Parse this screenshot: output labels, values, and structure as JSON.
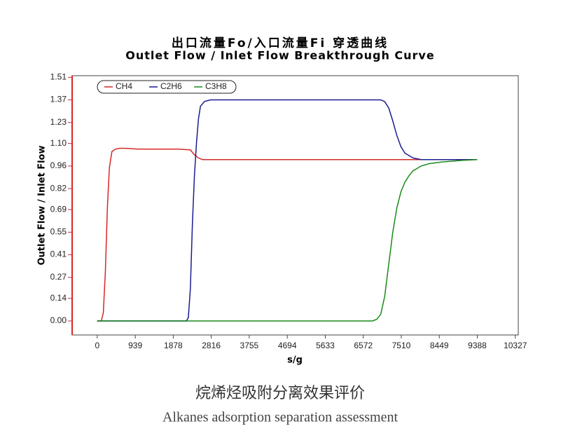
{
  "chart_data": {
    "type": "line",
    "title": "出口流量Fo/入口流量Fi 穿透曲线",
    "subtitle": "Outlet Flow / Inlet Flow Breakthrough Curve",
    "x_label": "s/g",
    "y_label": "Outlet Flow / Inlet Flow",
    "caption": "烷烯烃吸附分离效果评价",
    "caption_translation": "Alkanes adsorption separation assessment",
    "xlim": [
      -620,
      10400
    ],
    "xticks": [
      0,
      939,
      1878,
      2816,
      3755,
      4694,
      5633,
      6572,
      7510,
      8449,
      9388,
      10327
    ],
    "ylim": [
      -0.087,
      1.52
    ],
    "yticks": [
      {
        "value": 0,
        "label": "0.00"
      },
      0.14,
      0.27,
      0.41,
      0.55,
      0.69,
      0.82,
      0.96,
      {
        "value": 1.1,
        "label": "1.10"
      },
      1.23,
      1.37,
      1.51
    ],
    "legend": "top-left",
    "series": [
      {
        "name": "CH4",
        "color": "#d62828",
        "x": [
          0,
          100,
          150,
          200,
          250,
          300,
          363,
          450,
          550,
          700,
          1000,
          1500,
          2000,
          2300,
          2400,
          2500,
          2600,
          3000,
          4000,
          5000,
          6000,
          7000,
          8000,
          9000,
          9388
        ],
        "values": [
          0,
          0,
          0.05,
          0.3,
          0.7,
          0.95,
          1.05,
          1.065,
          1.07,
          1.07,
          1.065,
          1.065,
          1.065,
          1.06,
          1.03,
          1.01,
          1.0,
          1.0,
          1.0,
          1.0,
          1.0,
          1.0,
          1.0,
          1.0,
          1.0
        ]
      },
      {
        "name": "C2H6",
        "color": "#1c1c8f",
        "x": [
          0,
          2200,
          2250,
          2300,
          2350,
          2400,
          2450,
          2500,
          2550,
          2650,
          2800,
          4000,
          6000,
          7000,
          7100,
          7200,
          7300,
          7400,
          7500,
          7600,
          7800,
          8000,
          8500,
          9388
        ],
        "values": [
          0,
          0,
          0.02,
          0.2,
          0.6,
          0.9,
          1.1,
          1.25,
          1.33,
          1.36,
          1.37,
          1.37,
          1.37,
          1.37,
          1.36,
          1.32,
          1.24,
          1.15,
          1.08,
          1.04,
          1.01,
          1.0,
          1.0,
          1.0
        ]
      },
      {
        "name": "C3H8",
        "color": "#1a8a1a",
        "x": [
          0,
          6800,
          6900,
          7000,
          7100,
          7200,
          7300,
          7400,
          7500,
          7600,
          7700,
          7800,
          8000,
          8200,
          8500,
          9000,
          9388
        ],
        "values": [
          0,
          0,
          0.01,
          0.04,
          0.15,
          0.35,
          0.55,
          0.7,
          0.8,
          0.86,
          0.9,
          0.93,
          0.96,
          0.975,
          0.985,
          0.995,
          1.0
        ]
      }
    ]
  }
}
